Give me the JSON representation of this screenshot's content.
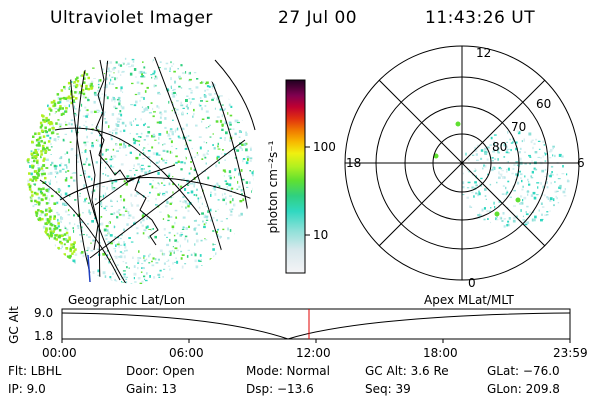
{
  "header": {
    "instrument": "Ultraviolet Imager",
    "date": "27 Jul 00",
    "time": "11:43:26 UT"
  },
  "colorbar": {
    "unit": "photon cm⁻²s⁻¹",
    "ticks": [
      "100",
      "10"
    ]
  },
  "polar_plot": {
    "mlt_labels": [
      "12",
      "18",
      "6",
      "0"
    ],
    "lat_labels": [
      "60",
      "70",
      "80"
    ]
  },
  "panel_labels": {
    "left": "Geographic Lat/Lon",
    "right": "Apex MLat/MLT"
  },
  "altitude_plot": {
    "ylabel": "GC Alt",
    "y_max": "9.0",
    "y_min": "1.8",
    "x_ticks": [
      "00:00",
      "06:00",
      "12:00",
      "18:00",
      "23:59"
    ]
  },
  "info": {
    "flt": "Flt: LBHL",
    "door": "Door: Open",
    "mode": "Mode: Normal",
    "gc_alt": "GC Alt: 3.6 Re",
    "glat": "GLat: −76.0",
    "ip": "IP:  9.0",
    "gain": "Gain: 13",
    "dsp": "Dsp:  −13.6",
    "seq": "Seq: 39",
    "glon": "GLon: 209.8"
  }
}
